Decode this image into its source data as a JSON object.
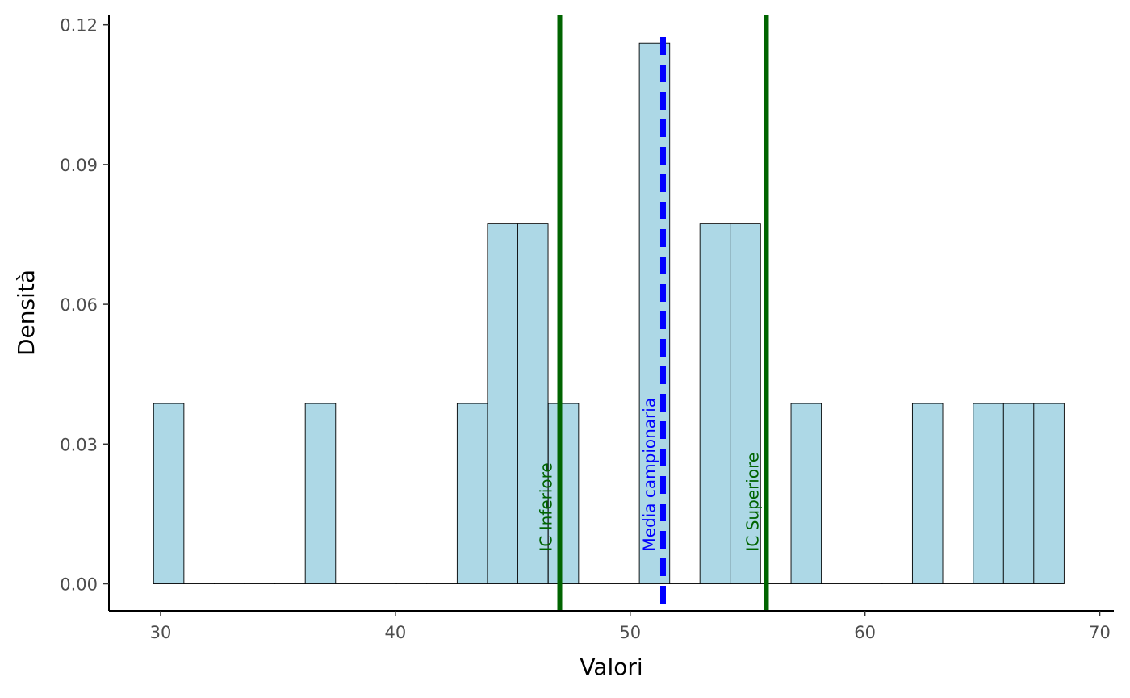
{
  "chart_data": {
    "type": "bar",
    "subtype": "histogram",
    "xlabel": "Valori",
    "ylabel": "Densità",
    "xlim": [
      27.8,
      70.6
    ],
    "ylim": [
      -0.0058,
      0.1222
    ],
    "x_ticks": [
      30,
      40,
      50,
      60,
      70
    ],
    "x_tick_labels": [
      "30",
      "40",
      "50",
      "60",
      "70"
    ],
    "y_ticks": [
      0,
      0.03,
      0.06,
      0.09,
      0.12
    ],
    "y_tick_labels": [
      "0.00",
      "0.03",
      "0.06",
      "0.09",
      "0.12"
    ],
    "bin_width": 1.2925,
    "bins": [
      {
        "start": 29.7,
        "density": 0.0387
      },
      {
        "start": 30.99,
        "density": 0
      },
      {
        "start": 32.29,
        "density": 0
      },
      {
        "start": 33.58,
        "density": 0
      },
      {
        "start": 34.87,
        "density": 0
      },
      {
        "start": 36.16,
        "density": 0.0387
      },
      {
        "start": 37.46,
        "density": 0
      },
      {
        "start": 38.75,
        "density": 0
      },
      {
        "start": 40.04,
        "density": 0
      },
      {
        "start": 41.34,
        "density": 0
      },
      {
        "start": 42.63,
        "density": 0.0387
      },
      {
        "start": 43.92,
        "density": 0.0774
      },
      {
        "start": 45.21,
        "density": 0.0774
      },
      {
        "start": 46.51,
        "density": 0.0387
      },
      {
        "start": 47.8,
        "density": 0
      },
      {
        "start": 49.09,
        "density": 0
      },
      {
        "start": 50.39,
        "density": 0.1161
      },
      {
        "start": 51.68,
        "density": 0
      },
      {
        "start": 52.97,
        "density": 0.0774
      },
      {
        "start": 54.26,
        "density": 0.0774
      },
      {
        "start": 55.56,
        "density": 0
      },
      {
        "start": 56.85,
        "density": 0.0387
      },
      {
        "start": 58.14,
        "density": 0
      },
      {
        "start": 59.44,
        "density": 0
      },
      {
        "start": 60.73,
        "density": 0
      },
      {
        "start": 62.02,
        "density": 0.0387
      },
      {
        "start": 63.31,
        "density": 0
      },
      {
        "start": 64.61,
        "density": 0.0387
      },
      {
        "start": 65.9,
        "density": 0.0387
      },
      {
        "start": 67.19,
        "density": 0.0387
      }
    ],
    "vlines": [
      {
        "x": 47.0,
        "label": "IC Inferiore",
        "color": "#006400",
        "style": "solid"
      },
      {
        "x": 51.4,
        "label": "Media campionaria",
        "color": "#0000ff",
        "style": "dashed"
      },
      {
        "x": 55.8,
        "label": "IC Superiore",
        "color": "#006400",
        "style": "solid"
      }
    ],
    "bar_fill": "#add8e6",
    "bar_stroke": "#000000",
    "grid": false,
    "legend": "none"
  }
}
